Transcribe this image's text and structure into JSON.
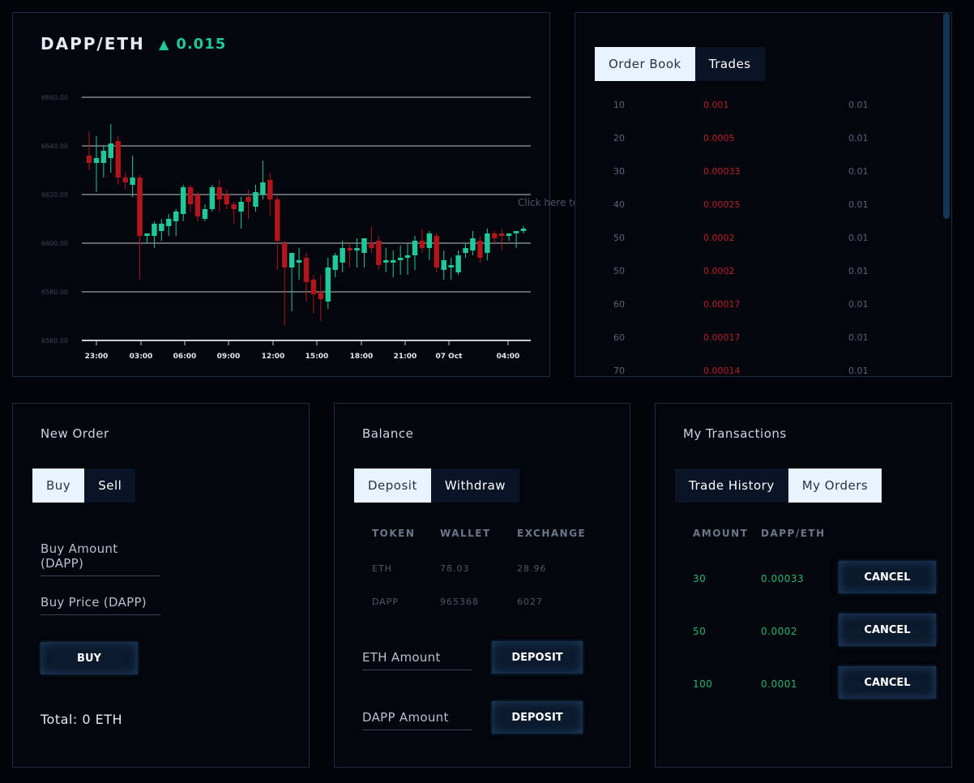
{
  "chart": {
    "pair": "DAPP/ETH",
    "change_icon": "triangle-up",
    "change": "0.015",
    "hint": "Click here to buy",
    "up_color": "#1fc99a",
    "down_color": "#b3151c"
  },
  "chart_data": {
    "type": "candlestick",
    "y_ticks": [
      "6560.00",
      "6580.00",
      "6600.00",
      "6620.00",
      "6640.00",
      "6660.00"
    ],
    "ylim": [
      6560,
      6660
    ],
    "x_ticks": [
      "23:00",
      "03:00",
      "06:00",
      "09:00",
      "12:00",
      "15:00",
      "18:00",
      "21:00",
      "07 Oct",
      "04:00"
    ],
    "grid": true,
    "candles": [
      [
        6636,
        6646,
        6630,
        6633
      ],
      [
        6633,
        6644,
        6621,
        6635
      ],
      [
        6633,
        6640,
        6627,
        6638
      ],
      [
        6635,
        6649,
        6629,
        6641
      ],
      [
        6642,
        6644,
        6624,
        6627
      ],
      [
        6627,
        6629,
        6622,
        6625
      ],
      [
        6624,
        6636,
        6619,
        6627
      ],
      [
        6627,
        6628,
        6585,
        6603
      ],
      [
        6603,
        6604,
        6600,
        6604
      ],
      [
        6603,
        6609,
        6598,
        6608
      ],
      [
        6605,
        6610,
        6601,
        6608
      ],
      [
        6607,
        6612,
        6603,
        6610
      ],
      [
        6609,
        6614,
        6603,
        6613
      ],
      [
        6612,
        6624,
        6609,
        6623
      ],
      [
        6623,
        6624,
        6613,
        6616
      ],
      [
        6620,
        6621,
        6609,
        6611
      ],
      [
        6610,
        6616,
        6609,
        6614
      ],
      [
        6614,
        6624,
        6613,
        6623
      ],
      [
        6623,
        6626,
        6613,
        6618
      ],
      [
        6620,
        6622,
        6614,
        6616
      ],
      [
        6616,
        6617,
        6608,
        6614
      ],
      [
        6613,
        6619,
        6606,
        6617
      ],
      [
        6619,
        6622,
        6610,
        6617
      ],
      [
        6615,
        6624,
        6613,
        6621
      ],
      [
        6620,
        6634,
        6618,
        6625
      ],
      [
        6626,
        6629,
        6611,
        6618
      ],
      [
        6618,
        6619,
        6589,
        6601
      ],
      [
        6600,
        6601,
        6566,
        6590
      ],
      [
        6590,
        6596,
        6572,
        6596
      ],
      [
        6592,
        6598,
        6585,
        6593
      ],
      [
        6594,
        6596,
        6576,
        6584
      ],
      [
        6585,
        6587,
        6571,
        6579
      ],
      [
        6580,
        6587,
        6568,
        6577
      ],
      [
        6576,
        6594,
        6573,
        6590
      ],
      [
        6589,
        6596,
        6586,
        6595
      ],
      [
        6592,
        6601,
        6588,
        6598
      ],
      [
        6598,
        6600,
        6590,
        6597
      ],
      [
        6597,
        6602,
        6590,
        6598
      ],
      [
        6596,
        6602,
        6590,
        6602
      ],
      [
        6600,
        6607,
        6596,
        6598
      ],
      [
        6601,
        6603,
        6589,
        6591
      ],
      [
        6592,
        6598,
        6588,
        6593
      ],
      [
        6592,
        6597,
        6586,
        6593
      ],
      [
        6593,
        6599,
        6587,
        6594
      ],
      [
        6594,
        6600,
        6587,
        6595
      ],
      [
        6595,
        6603,
        6589,
        6601
      ],
      [
        6601,
        6606,
        6596,
        6598
      ],
      [
        6598,
        6605,
        6593,
        6604
      ],
      [
        6603,
        6604,
        6588,
        6590
      ],
      [
        6589,
        6597,
        6585,
        6593
      ],
      [
        6590,
        6594,
        6585,
        6591
      ],
      [
        6588,
        6597,
        6587,
        6595
      ],
      [
        6596,
        6600,
        6594,
        6598
      ],
      [
        6597,
        6605,
        6595,
        6602
      ],
      [
        6601,
        6603,
        6592,
        6594
      ],
      [
        6596,
        6606,
        6593,
        6604
      ],
      [
        6604,
        6605,
        6600,
        6602
      ],
      [
        6604,
        6606,
        6597,
        6603
      ],
      [
        6603,
        6604,
        6601,
        6604
      ],
      [
        6604,
        6605,
        6598,
        6605
      ],
      [
        6605,
        6607,
        6604,
        6606
      ]
    ]
  },
  "order_book": {
    "tabs": [
      "Order Book",
      "Trades"
    ],
    "rows": [
      {
        "amount": "10",
        "price": "0.001",
        "total": "0.01"
      },
      {
        "amount": "20",
        "price": "0.0005",
        "total": "0.01"
      },
      {
        "amount": "30",
        "price": "0.00033",
        "total": "0.01"
      },
      {
        "amount": "40",
        "price": "0.00025",
        "total": "0.01"
      },
      {
        "amount": "50",
        "price": "0.0002",
        "total": "0.01"
      },
      {
        "amount": "50",
        "price": "0.0002",
        "total": "0.01"
      },
      {
        "amount": "60",
        "price": "0.00017",
        "total": "0.01"
      },
      {
        "amount": "60",
        "price": "0.00017",
        "total": "0.01"
      },
      {
        "amount": "70",
        "price": "0.00014",
        "total": "0.01"
      }
    ]
  },
  "new_order": {
    "title": "New Order",
    "tab_buy": "Buy",
    "tab_sell": "Sell",
    "amount_placeholder": "Buy Amount (DAPP)",
    "price_placeholder": "Buy Price (DAPP)",
    "buy_label": "BUY",
    "total": "Total: 0 ETH"
  },
  "balance": {
    "title": "Balance",
    "tab_deposit": "Deposit",
    "tab_withdraw": "Withdraw",
    "headers": [
      "TOKEN",
      "WALLET",
      "EXCHANGE"
    ],
    "rows": [
      {
        "token": "ETH",
        "wallet": "78.03",
        "exchange": "28.96"
      },
      {
        "token": "DAPP",
        "wallet": "965368",
        "exchange": "6027"
      }
    ],
    "eth_placeholder": "ETH Amount",
    "dapp_placeholder": "DAPP Amount",
    "deposit_label": "DEPOSIT"
  },
  "transactions": {
    "title": "My Transactions",
    "tab_history": "Trade History",
    "tab_orders": "My Orders",
    "headers": [
      "AMOUNT",
      "DAPP/ETH"
    ],
    "rows": [
      {
        "amount": "30",
        "price": "0.00033"
      },
      {
        "amount": "50",
        "price": "0.0002"
      },
      {
        "amount": "100",
        "price": "0.0001"
      }
    ],
    "cancel_label": "CANCEL"
  }
}
